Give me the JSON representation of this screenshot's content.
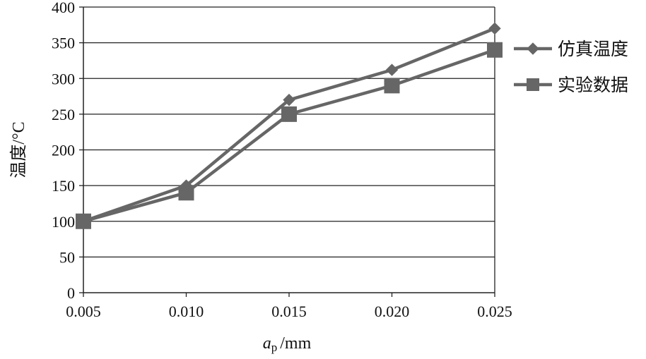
{
  "chart_data": {
    "type": "line",
    "title": "",
    "x": [
      0.005,
      0.01,
      0.015,
      0.02,
      0.025
    ],
    "x_tick_labels": [
      "0.005",
      "0.010",
      "0.015",
      "0.020",
      "0.025"
    ],
    "xlabel_italic": "a",
    "xlabel_sub": "p",
    "xlabel_unit": "/mm",
    "ylabel": "温度/°C",
    "ylim": [
      0,
      400
    ],
    "y_ticks": [
      0,
      50,
      100,
      150,
      200,
      250,
      300,
      350,
      400
    ],
    "grid": "horizontal",
    "legend_position": "right",
    "series": [
      {
        "name": "仿真温度",
        "marker": "diamond",
        "color": "#666666",
        "values": [
          100,
          150,
          270,
          312,
          370
        ]
      },
      {
        "name": "实验数据",
        "marker": "square",
        "color": "#666666",
        "values": [
          100,
          140,
          250,
          290,
          340
        ]
      }
    ]
  }
}
